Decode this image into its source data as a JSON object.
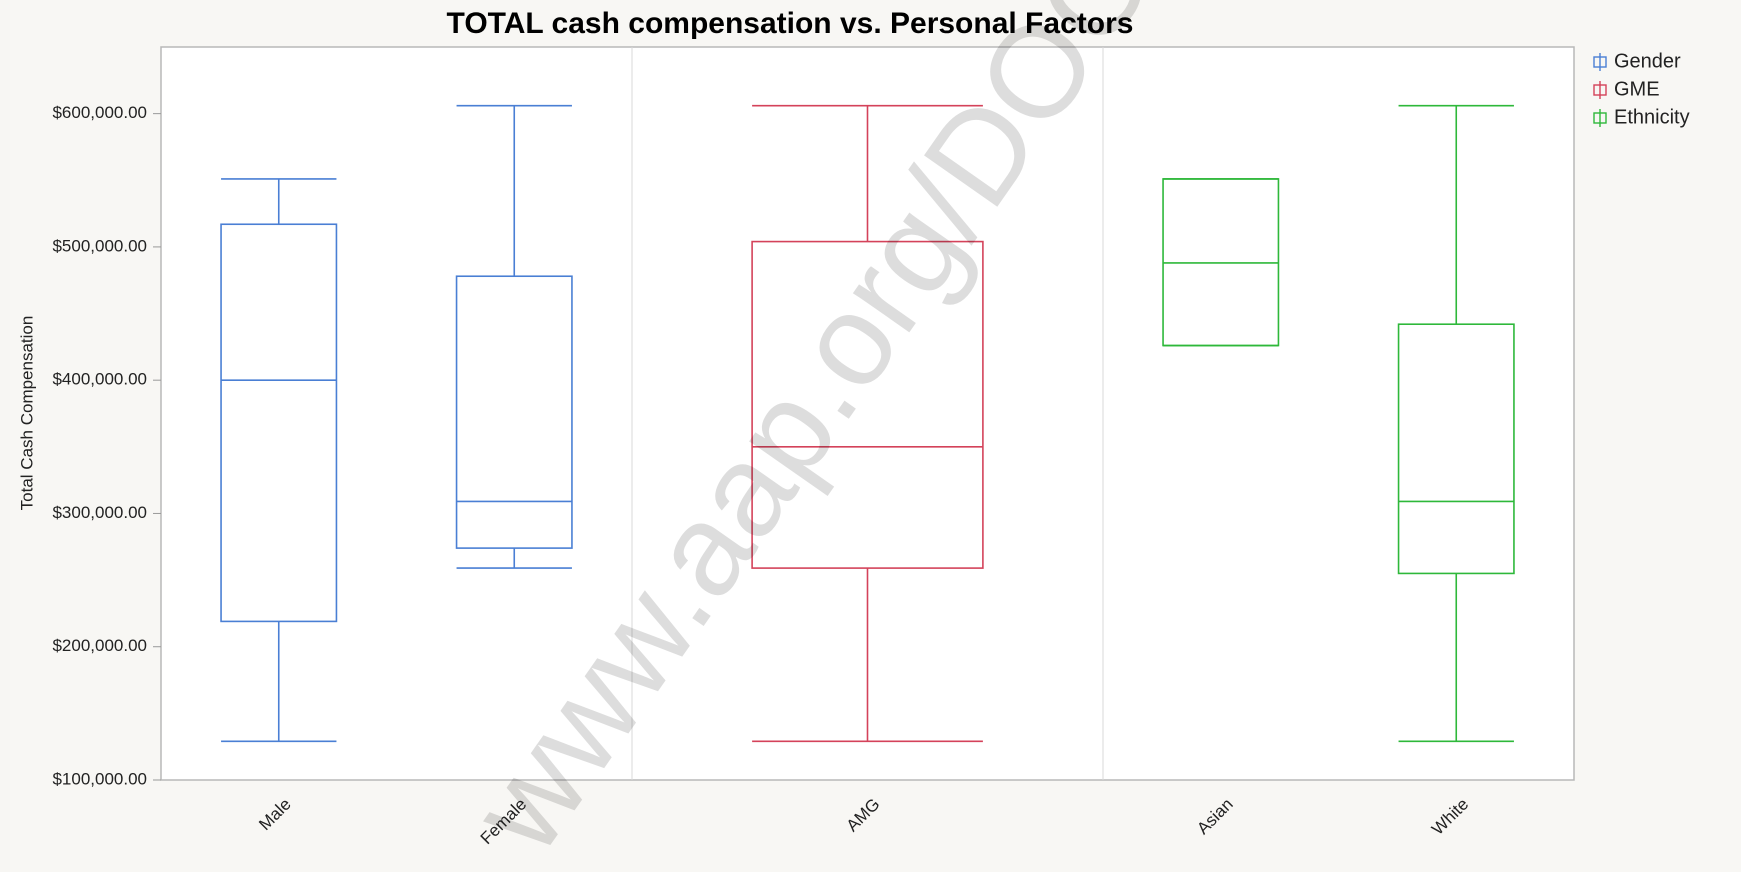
{
  "chart_data": {
    "type": "box",
    "title": "TOTAL cash compensation vs. Personal Factors",
    "y_label": "Total Cash Compensation",
    "watermark": "www.aap.org/DOC",
    "ylim": [
      100000,
      650000
    ],
    "yticks": [
      {
        "value": 100000,
        "label": "$100,000.00"
      },
      {
        "value": 200000,
        "label": "$200,000.00"
      },
      {
        "value": 300000,
        "label": "$300,000.00"
      },
      {
        "value": 400000,
        "label": "$400,000.00"
      },
      {
        "value": 500000,
        "label": "$500,000.00"
      },
      {
        "value": 600000,
        "label": "$600,000.00"
      }
    ],
    "legend": "top-right",
    "series": [
      {
        "name": "Gender",
        "color": "#4a7fd4",
        "categories": [
          "Male",
          "Female"
        ],
        "boxes": [
          {
            "min": 129000,
            "q1": 219000,
            "median": 400000,
            "q3": 517000,
            "max": 551000
          },
          {
            "min": 259000,
            "q1": 274000,
            "median": 309000,
            "q3": 478000,
            "max": 606000
          }
        ]
      },
      {
        "name": "GME",
        "color": "#d4425a",
        "categories": [
          "AMG"
        ],
        "boxes": [
          {
            "min": 129000,
            "q1": 259000,
            "median": 350000,
            "q3": 504000,
            "max": 606000
          }
        ]
      },
      {
        "name": "Ethnicity",
        "color": "#2eb83a",
        "categories": [
          "Asian",
          "White"
        ],
        "boxes": [
          {
            "min": 426000,
            "q1": 426000,
            "median": 488000,
            "q3": 551000,
            "max": 551000
          },
          {
            "min": 129000,
            "q1": 255000,
            "median": 309000,
            "q3": 442000,
            "max": 606000
          }
        ]
      }
    ]
  }
}
